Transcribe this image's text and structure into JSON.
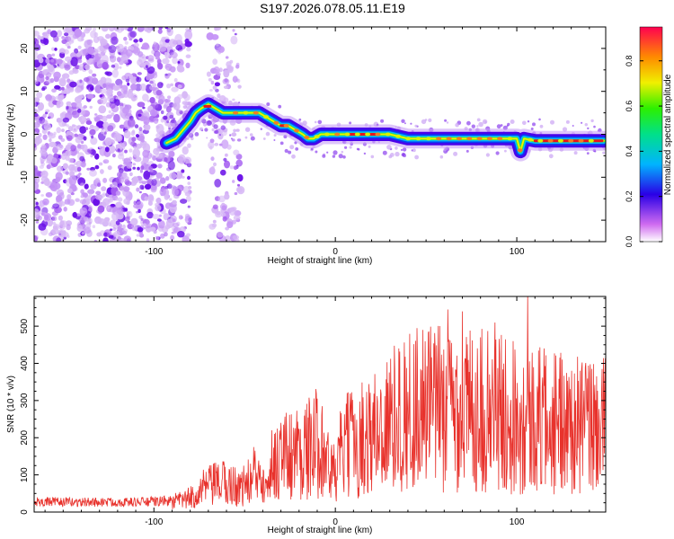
{
  "title": "S197.2026.078.05.11.E19",
  "chart_data": [
    {
      "type": "heatmap",
      "name": "spectrogram",
      "xlabel": "Height of straight line (km)",
      "ylabel": "Frequency (Hz)",
      "xlim": [
        -166,
        149
      ],
      "ylim": [
        -25,
        25
      ],
      "xticks": [
        -100,
        0,
        100
      ],
      "yticks": [
        -20,
        -10,
        0,
        10,
        20
      ],
      "colorbar": {
        "label": "Normalized spectral amplitude",
        "range": [
          0.0,
          0.95
        ],
        "ticks": [
          0.0,
          0.2,
          0.4,
          0.6,
          0.8
        ]
      },
      "ridge": [
        [
          -93,
          -2
        ],
        [
          -88,
          -1
        ],
        [
          -84,
          1
        ],
        [
          -80,
          3
        ],
        [
          -77,
          5
        ],
        [
          -74,
          6
        ],
        [
          -70,
          7
        ],
        [
          -66,
          6
        ],
        [
          -62,
          5
        ],
        [
          -58,
          5
        ],
        [
          -54,
          5
        ],
        [
          -50,
          5
        ],
        [
          -46,
          5
        ],
        [
          -42,
          5
        ],
        [
          -38,
          4
        ],
        [
          -34,
          3
        ],
        [
          -30,
          2
        ],
        [
          -26,
          2
        ],
        [
          -22,
          1
        ],
        [
          -18,
          0
        ],
        [
          -15,
          -1
        ],
        [
          -12,
          -1
        ],
        [
          -8,
          0
        ],
        [
          -4,
          0
        ],
        [
          0,
          0
        ],
        [
          10,
          0
        ],
        [
          20,
          0
        ],
        [
          30,
          0
        ],
        [
          40,
          -1
        ],
        [
          50,
          -1
        ],
        [
          60,
          -1
        ],
        [
          70,
          -1
        ],
        [
          80,
          -1
        ],
        [
          90,
          -1
        ],
        [
          100,
          -1
        ],
        [
          102,
          -4
        ],
        [
          104,
          -1
        ],
        [
          110,
          -1.5
        ],
        [
          120,
          -1.5
        ],
        [
          130,
          -1.5
        ],
        [
          140,
          -1.5
        ],
        [
          148,
          -1.5
        ]
      ]
    },
    {
      "type": "line",
      "name": "snr",
      "xlabel": "Height of straight line (km)",
      "ylabel": "SNR (10 * v/v)",
      "xlim": [
        -166,
        149
      ],
      "ylim": [
        0,
        580
      ],
      "xticks": [
        -100,
        0,
        100
      ],
      "yticks": [
        0,
        100,
        200,
        300,
        400,
        500
      ],
      "color": "#e8322c",
      "envelope": [
        [
          -166,
          30
        ],
        [
          -150,
          28
        ],
        [
          -130,
          28
        ],
        [
          -110,
          28
        ],
        [
          -90,
          32
        ],
        [
          -80,
          45
        ],
        [
          -72,
          80
        ],
        [
          -62,
          95
        ],
        [
          -52,
          80
        ],
        [
          -40,
          130
        ],
        [
          -30,
          180
        ],
        [
          -20,
          200
        ],
        [
          -12,
          210
        ],
        [
          -8,
          250
        ],
        [
          -4,
          150
        ],
        [
          0,
          120
        ],
        [
          4,
          210
        ],
        [
          12,
          230
        ],
        [
          22,
          260
        ],
        [
          32,
          300
        ],
        [
          42,
          330
        ],
        [
          52,
          340
        ],
        [
          62,
          340
        ],
        [
          72,
          335
        ],
        [
          82,
          330
        ],
        [
          92,
          320
        ],
        [
          102,
          310
        ],
        [
          112,
          300
        ],
        [
          122,
          290
        ],
        [
          132,
          280
        ],
        [
          142,
          280
        ],
        [
          149,
          280
        ]
      ],
      "peaks": [
        [
          -65,
          120
        ],
        [
          -45,
          175
        ],
        [
          -30,
          240
        ],
        [
          -10,
          305
        ],
        [
          35,
          440
        ],
        [
          45,
          495
        ],
        [
          55,
          440
        ],
        [
          62,
          545
        ],
        [
          70,
          540
        ],
        [
          80,
          470
        ],
        [
          88,
          510
        ],
        [
          98,
          460
        ],
        [
          106,
          585
        ],
        [
          115,
          440
        ],
        [
          125,
          410
        ],
        [
          135,
          380
        ],
        [
          147,
          385
        ]
      ]
    }
  ]
}
